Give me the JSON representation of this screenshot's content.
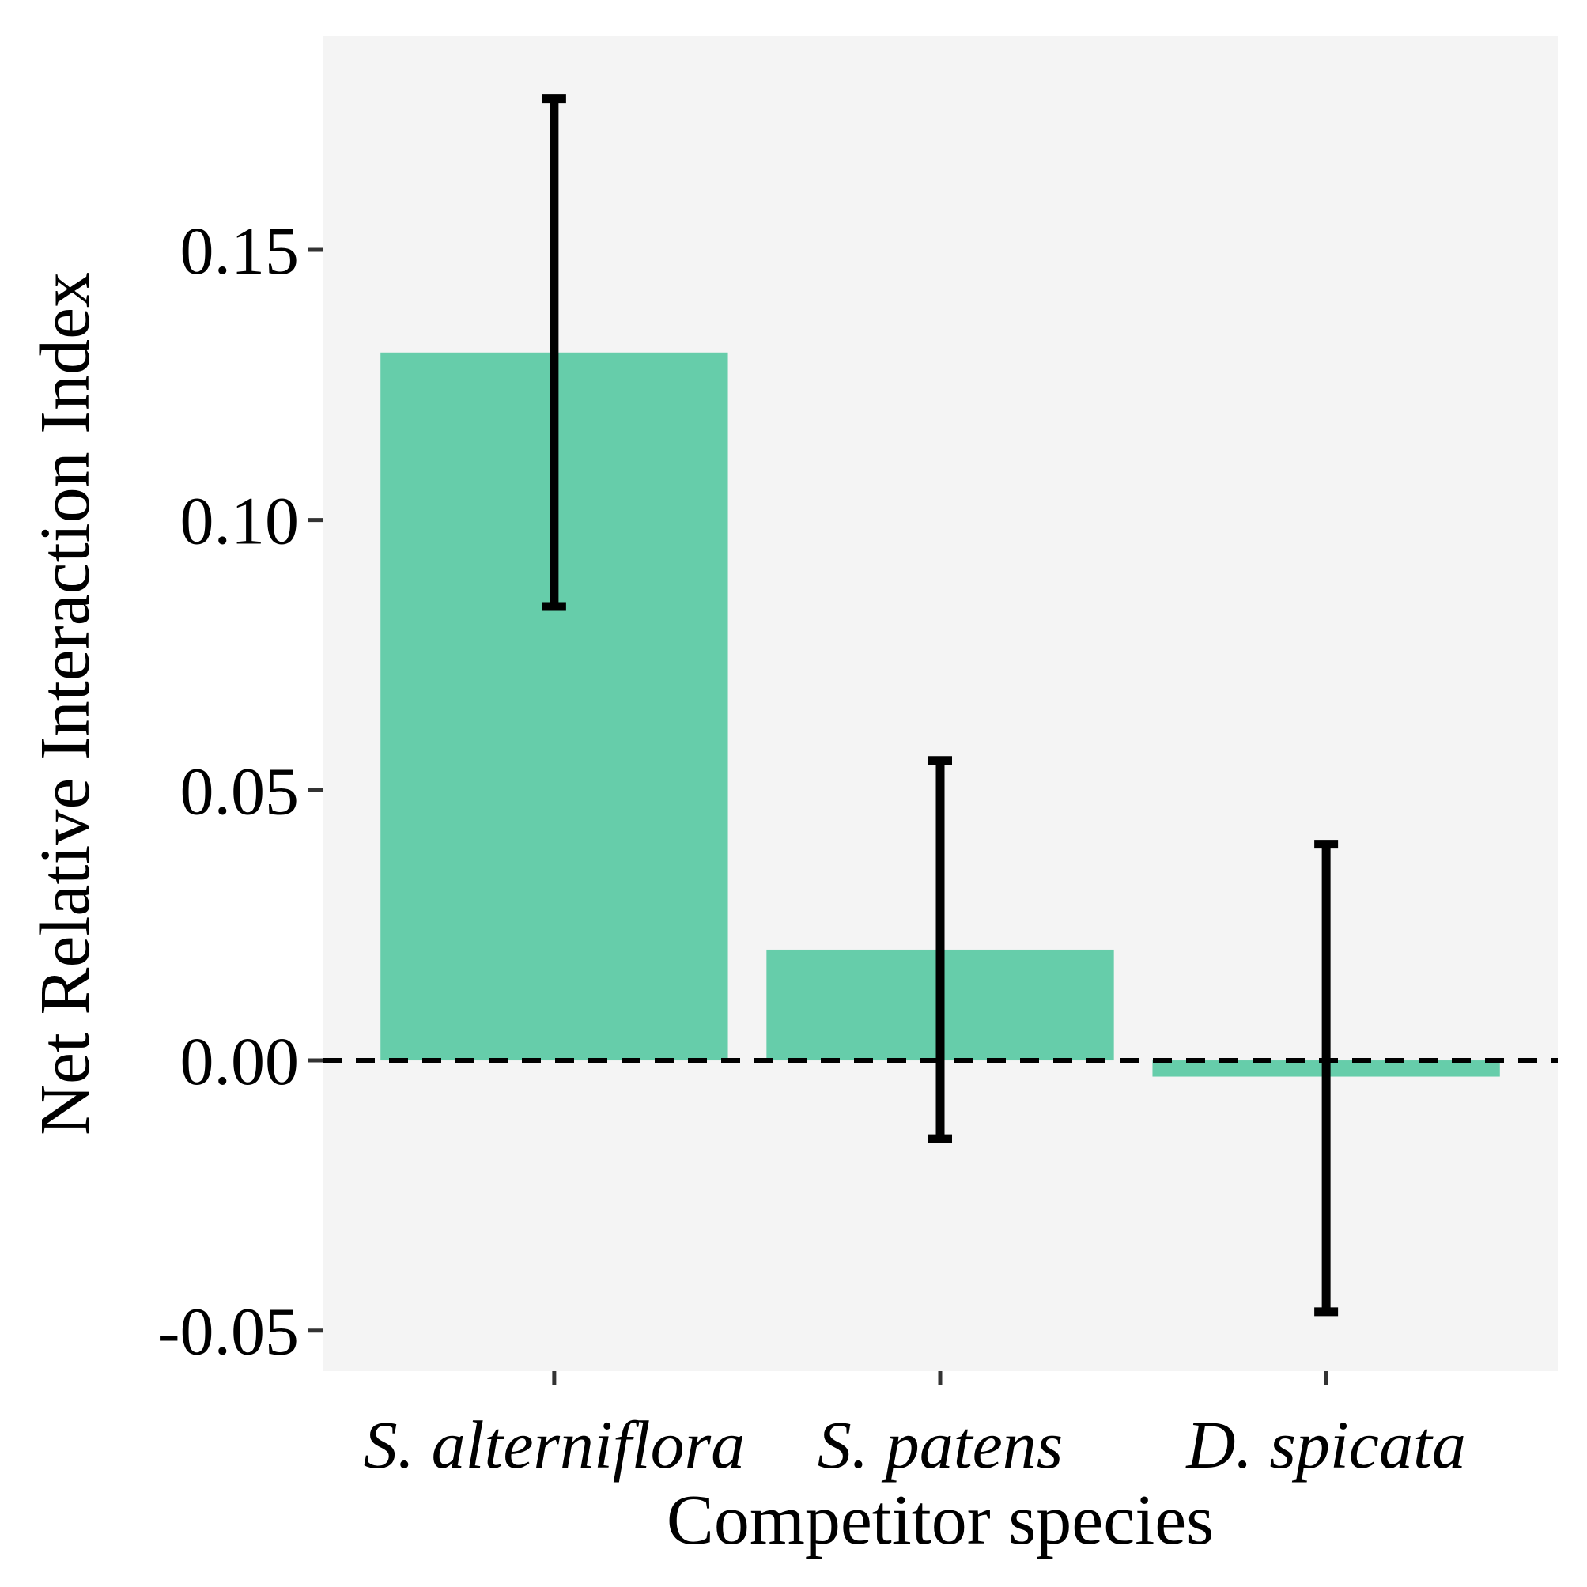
{
  "chart_data": {
    "type": "bar",
    "categories": [
      "S. alterniflora",
      "S. patens",
      "D. spicata"
    ],
    "values": [
      0.131,
      0.0205,
      -0.003
    ],
    "error_low": [
      0.084,
      -0.0145,
      -0.0465
    ],
    "error_high": [
      0.178,
      0.0555,
      0.04
    ],
    "xlabel": "Competitor species",
    "ylabel": "Net Relative Interaction Index",
    "ylim": [
      -0.0575,
      0.1895
    ],
    "yticks": [
      -0.05,
      0.0,
      0.05,
      0.1,
      0.15
    ],
    "ytick_labels": [
      "-0.05",
      "0.00",
      "0.05",
      "0.10",
      "0.15"
    ],
    "reference_line": 0,
    "grid": false,
    "legend": "none",
    "colors": {
      "bar": "#66cdaa",
      "panel": "#f4f4f4",
      "error_bar": "#000000",
      "reference_line": "#000000"
    }
  }
}
